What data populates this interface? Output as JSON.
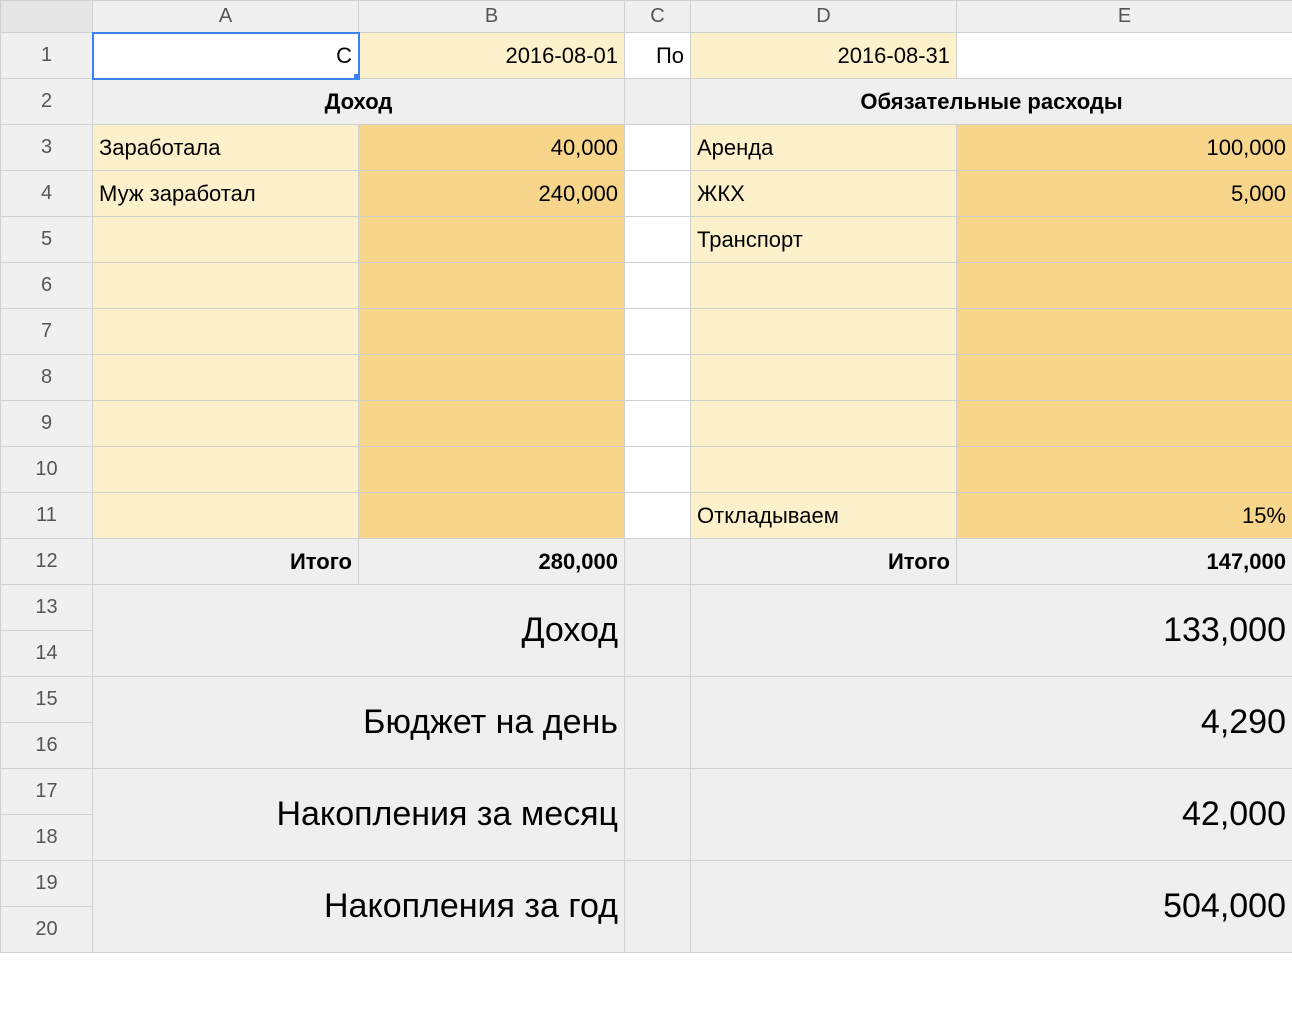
{
  "colors": {
    "light_highlight": "#fdf1cc",
    "dark_highlight": "#f7d58a",
    "summary_bg": "#efefef",
    "selection": "#3b82f6",
    "grid": "#d0d0d0",
    "header_bg": "#f0f0f0"
  },
  "columns": [
    "A",
    "B",
    "C",
    "D",
    "E"
  ],
  "row_numbers": [
    "1",
    "2",
    "3",
    "4",
    "5",
    "6",
    "7",
    "8",
    "9",
    "10",
    "11",
    "12",
    "13",
    "14",
    "15",
    "16",
    "17",
    "18",
    "19",
    "20"
  ],
  "row1": {
    "A": "С",
    "B": "2016-08-01",
    "C": "По",
    "D": "2016-08-31"
  },
  "section_headers": {
    "income": "Доход",
    "expenses": "Обязательные расходы"
  },
  "income": {
    "rows": [
      {
        "label": "Заработала",
        "value": "40,000"
      },
      {
        "label": "Муж заработал",
        "value": "240,000"
      },
      {
        "label": "",
        "value": ""
      },
      {
        "label": "",
        "value": ""
      },
      {
        "label": "",
        "value": ""
      },
      {
        "label": "",
        "value": ""
      },
      {
        "label": "",
        "value": ""
      },
      {
        "label": "",
        "value": ""
      },
      {
        "label": "",
        "value": ""
      }
    ],
    "total_label": "Итого",
    "total_value": "280,000"
  },
  "expenses": {
    "rows": [
      {
        "label": "Аренда",
        "value": "100,000"
      },
      {
        "label": "ЖКХ",
        "value": "5,000"
      },
      {
        "label": "Транспорт",
        "value": ""
      },
      {
        "label": "",
        "value": ""
      },
      {
        "label": "",
        "value": ""
      },
      {
        "label": "",
        "value": ""
      },
      {
        "label": "",
        "value": ""
      },
      {
        "label": "",
        "value": ""
      },
      {
        "label": "Откладываем",
        "value": "15%"
      }
    ],
    "total_label": "Итого",
    "total_value": "147,000"
  },
  "summary": [
    {
      "label": "Доход",
      "value": "133,000"
    },
    {
      "label": "Бюджет на день",
      "value": "4,290"
    },
    {
      "label": "Накопления за месяц",
      "value": "42,000"
    },
    {
      "label": "Накопления за год",
      "value": "504,000"
    }
  ]
}
